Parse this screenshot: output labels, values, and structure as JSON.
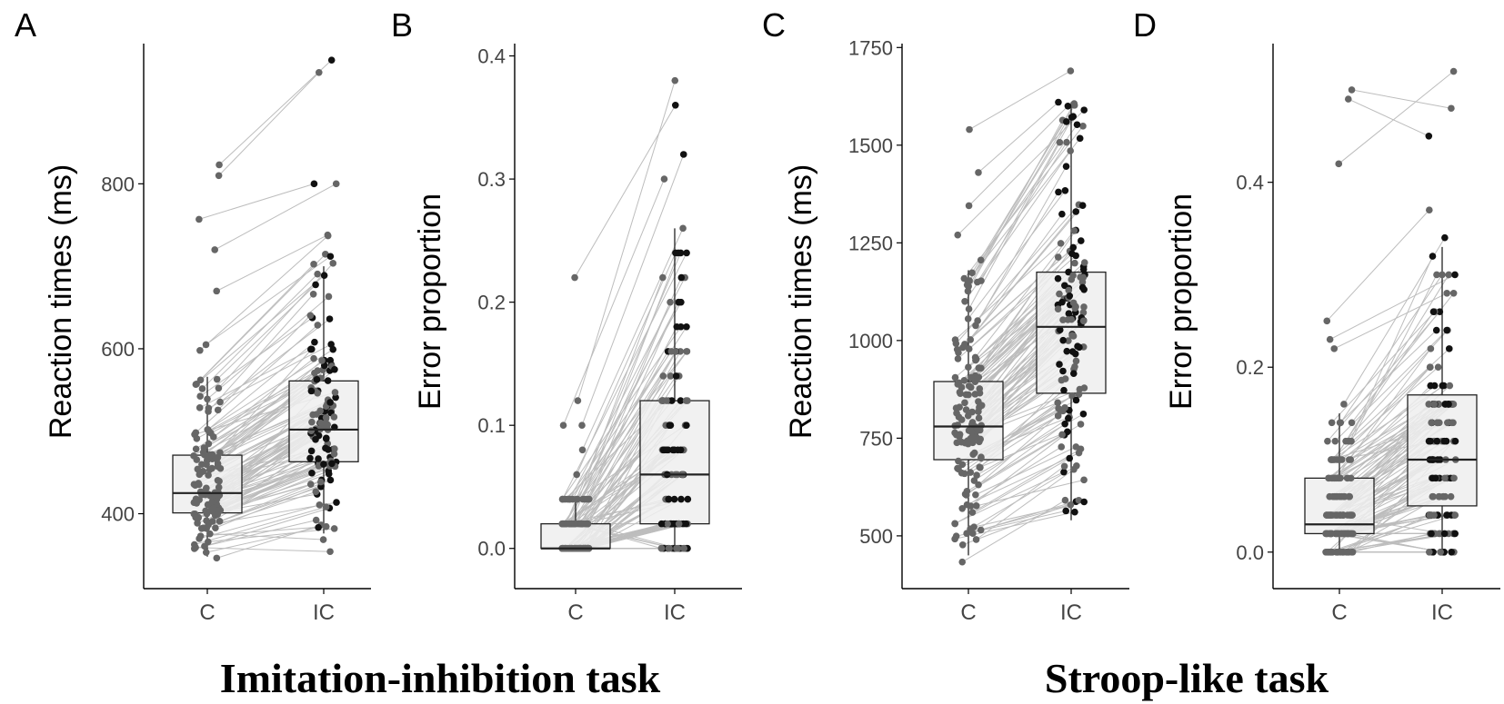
{
  "figure": {
    "group_titles": [
      "Imitation-inhibition task",
      "Stroop-like task"
    ]
  },
  "colors": {
    "axis": "#000000",
    "tick_text": "#444444",
    "box_fill": "#efefef",
    "box_edge": "#222222",
    "connect_line": "#bdbdbd",
    "points_C": "#666666",
    "points_IC_outer": "#111111",
    "points_IC_inner": "#666666"
  },
  "chart_data": [
    {
      "panel": "A",
      "type": "box",
      "task": "Imitation-inhibition task",
      "ylabel": "Reaction times (ms)",
      "xlabel": "",
      "categories": [
        "C",
        "IC"
      ],
      "ylim": [
        340,
        970
      ],
      "yticks": [
        400,
        600,
        800
      ],
      "ytick_labels": [
        "400",
        "600",
        "800"
      ],
      "boxes": [
        {
          "category": "C",
          "whisker_low": 348,
          "q1": 401,
          "median": 425,
          "q3": 471,
          "whisker_high": 566
        },
        {
          "category": "IC",
          "whisker_low": 376,
          "q1": 463,
          "median": 502,
          "q3": 561,
          "whisker_high": 700
        }
      ],
      "paired_outliers": [
        [
          823,
          950
        ],
        [
          810,
          935
        ],
        [
          757,
          800
        ],
        [
          720,
          800
        ],
        [
          670,
          738
        ],
        [
          598,
          737
        ],
        [
          605,
          712
        ]
      ],
      "n_participants": 120
    },
    {
      "panel": "B",
      "type": "box",
      "task": "Imitation-inhibition task",
      "ylabel": "Error proportion",
      "xlabel": "",
      "categories": [
        "C",
        "IC"
      ],
      "ylim": [
        -0.012,
        0.41
      ],
      "yticks": [
        0.0,
        0.1,
        0.2,
        0.3,
        0.4
      ],
      "ytick_labels": [
        "0.0",
        "0.1",
        "0.2",
        "0.3",
        "0.4"
      ],
      "boxes": [
        {
          "category": "C",
          "whisker_low": 0.0,
          "q1": 0.0,
          "median": 0.0,
          "q3": 0.02,
          "whisker_high": 0.04
        },
        {
          "category": "IC",
          "whisker_low": 0.0,
          "q1": 0.02,
          "median": 0.06,
          "q3": 0.12,
          "whisker_high": 0.26
        }
      ],
      "paired_outliers": [
        [
          0.22,
          0.36
        ],
        [
          0.12,
          0.38
        ],
        [
          0.1,
          0.32
        ],
        [
          0.1,
          0.3
        ],
        [
          0.08,
          0.26
        ],
        [
          0.06,
          0.24
        ]
      ],
      "n_participants": 120
    },
    {
      "panel": "C",
      "type": "box",
      "task": "Stroop-like task",
      "ylabel": "Reaction times (ms)",
      "xlabel": "",
      "categories": [
        "C",
        "IC"
      ],
      "ylim": [
        430,
        1760
      ],
      "yticks": [
        500,
        750,
        1000,
        1250,
        1500,
        1750
      ],
      "ytick_labels": [
        "500",
        "750",
        "1000",
        "1250",
        "1500",
        "1750"
      ],
      "boxes": [
        {
          "category": "C",
          "whisker_low": 450,
          "q1": 695,
          "median": 780,
          "q3": 895,
          "whisker_high": 1180
        },
        {
          "category": "IC",
          "whisker_low": 540,
          "q1": 865,
          "median": 1035,
          "q3": 1175,
          "whisker_high": 1610
        }
      ],
      "paired_outliers": [
        [
          1540,
          1690
        ],
        [
          1430,
          1610
        ],
        [
          1345,
          1600
        ],
        [
          1270,
          1590
        ]
      ],
      "n_participants": 130
    },
    {
      "panel": "D",
      "type": "box",
      "task": "Stroop-like task",
      "ylabel": "Error proportion",
      "xlabel": "",
      "categories": [
        "C",
        "IC"
      ],
      "ylim": [
        -0.012,
        0.55
      ],
      "yticks": [
        0.0,
        0.2,
        0.4
      ],
      "ytick_labels": [
        "0.0",
        "0.2",
        "0.4"
      ],
      "boxes": [
        {
          "category": "C",
          "whisker_low": 0.0,
          "q1": 0.02,
          "median": 0.03,
          "q3": 0.08,
          "whisker_high": 0.15
        },
        {
          "category": "IC",
          "whisker_low": 0.0,
          "q1": 0.05,
          "median": 0.1,
          "q3": 0.17,
          "whisker_high": 0.33
        }
      ],
      "paired_outliers": [
        [
          0.5,
          0.48
        ],
        [
          0.49,
          0.45
        ],
        [
          0.42,
          0.52
        ],
        [
          0.25,
          0.37
        ],
        [
          0.23,
          0.3
        ],
        [
          0.22,
          0.28
        ]
      ],
      "n_participants": 130
    }
  ]
}
